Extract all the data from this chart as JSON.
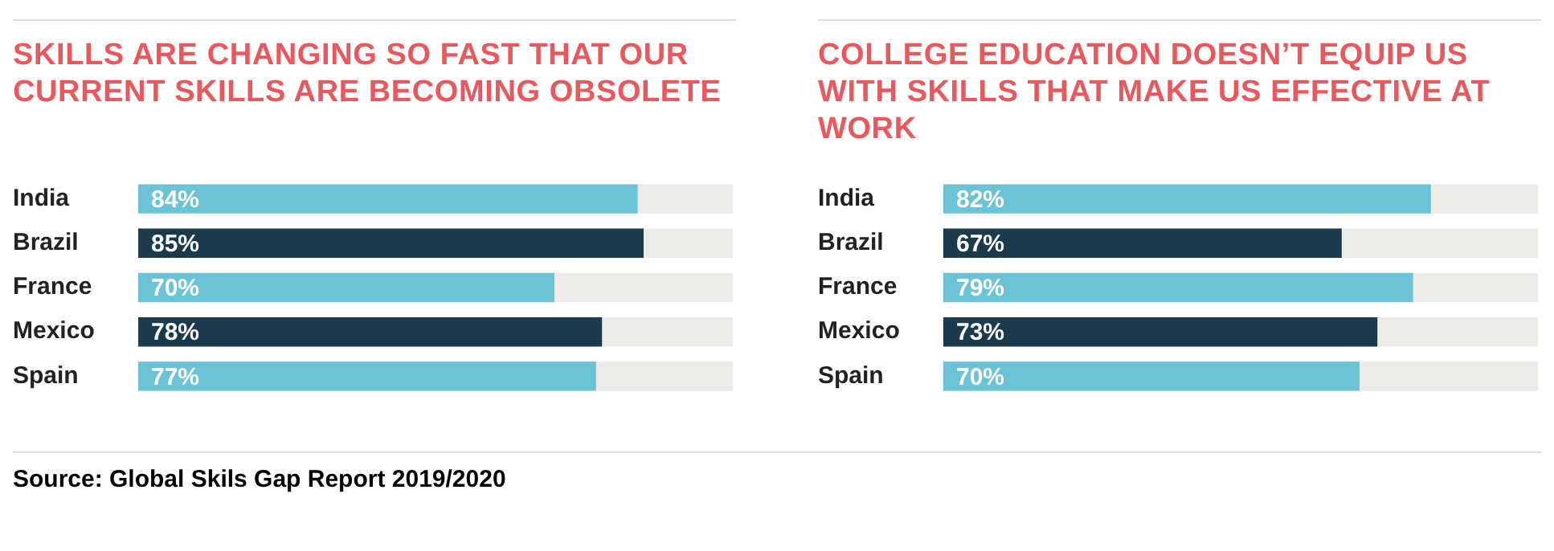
{
  "chart_data": [
    {
      "type": "bar",
      "orientation": "horizontal",
      "title": "SKILLS ARE CHANGING SO FAST THAT OUR CURRENT SKILLS ARE BECOMING OBSOLETE",
      "categories": [
        "India",
        "Brazil",
        "France",
        "Mexico",
        "Spain"
      ],
      "values": [
        84,
        85,
        70,
        78,
        77
      ],
      "colors": [
        "#6cc3d5",
        "#1b3a4b",
        "#6cc3d5",
        "#1b3a4b",
        "#6cc3d5"
      ],
      "value_labels": [
        "84%",
        "85%",
        "70%",
        "78%",
        "77%"
      ],
      "xlim": [
        0,
        100
      ],
      "tick_labels": "y",
      "annotations": [
        "Source: Global Skils Gap Report 2019/2020"
      ]
    },
    {
      "type": "bar",
      "orientation": "horizontal",
      "title": "COLLEGE EDUCATION DOESN’T EQUIP US WITH SKILLS THAT MAKE US EFFECTIVE AT WORK",
      "categories": [
        "India",
        "Brazil",
        "France",
        "Mexico",
        "Spain"
      ],
      "values": [
        82,
        67,
        79,
        73,
        70
      ],
      "colors": [
        "#6cc3d5",
        "#1b3a4b",
        "#6cc3d5",
        "#1b3a4b",
        "#6cc3d5"
      ],
      "value_labels": [
        "82%",
        "67%",
        "79%",
        "73%",
        "70%"
      ],
      "xlim": [
        0,
        100
      ],
      "tick_labels": "y"
    }
  ]
}
